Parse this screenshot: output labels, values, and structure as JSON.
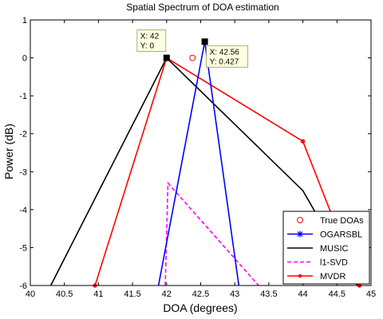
{
  "chart_data": {
    "type": "line",
    "title": "Spatial Spectrum of DOA estimation",
    "xlabel": "DOA (degrees)",
    "ylabel": "Power (dB)",
    "xlim": [
      40,
      45
    ],
    "ylim": [
      -6,
      1
    ],
    "xticks": [
      "40",
      "40.5",
      "41",
      "41.5",
      "42",
      "42.5",
      "43",
      "43.5",
      "44",
      "44.5",
      "45"
    ],
    "yticks": [
      "1",
      "0",
      "-1",
      "-2",
      "-3",
      "-4",
      "-5",
      "-6"
    ],
    "grid": false,
    "legend_placement": "bottom-right",
    "series": [
      {
        "name": "True DOAs",
        "color": "#ff0000",
        "style": "markers",
        "marker": "circle",
        "x": [
          42.38
        ],
        "y": [
          0
        ]
      },
      {
        "name": "OGARSBL",
        "color": "#0000ff",
        "style": "solid",
        "marker": "asterisk",
        "x": [
          41.88,
          42.56,
          43.06
        ],
        "y": [
          -6.0,
          0.427,
          -6.0
        ]
      },
      {
        "name": "MUSIC",
        "color": "#000000",
        "style": "solid",
        "marker": "none",
        "x": [
          40.3,
          42.0,
          44.0,
          44.8
        ],
        "y": [
          -6.0,
          0.0,
          -3.5,
          -6.0
        ]
      },
      {
        "name": "l1-SVD",
        "color": "#ff00ff",
        "style": "dashed",
        "marker": "none",
        "x": [
          41.98,
          42.02,
          43.35
        ],
        "y": [
          -6.0,
          -3.3,
          -6.0
        ]
      },
      {
        "name": "MVDR",
        "color": "#ff0000",
        "style": "solid",
        "marker": "dot",
        "x": [
          40.95,
          42.0,
          44.0,
          44.83
        ],
        "y": [
          -6.0,
          0.0,
          -2.2,
          -6.0
        ]
      }
    ],
    "datatips": [
      {
        "x": 42,
        "y": 0,
        "line1": "X: 42",
        "line2": "Y: 0"
      },
      {
        "x": 42.56,
        "y": 0.427,
        "line1": "X: 42.56",
        "line2": "Y: 0.427"
      }
    ]
  }
}
